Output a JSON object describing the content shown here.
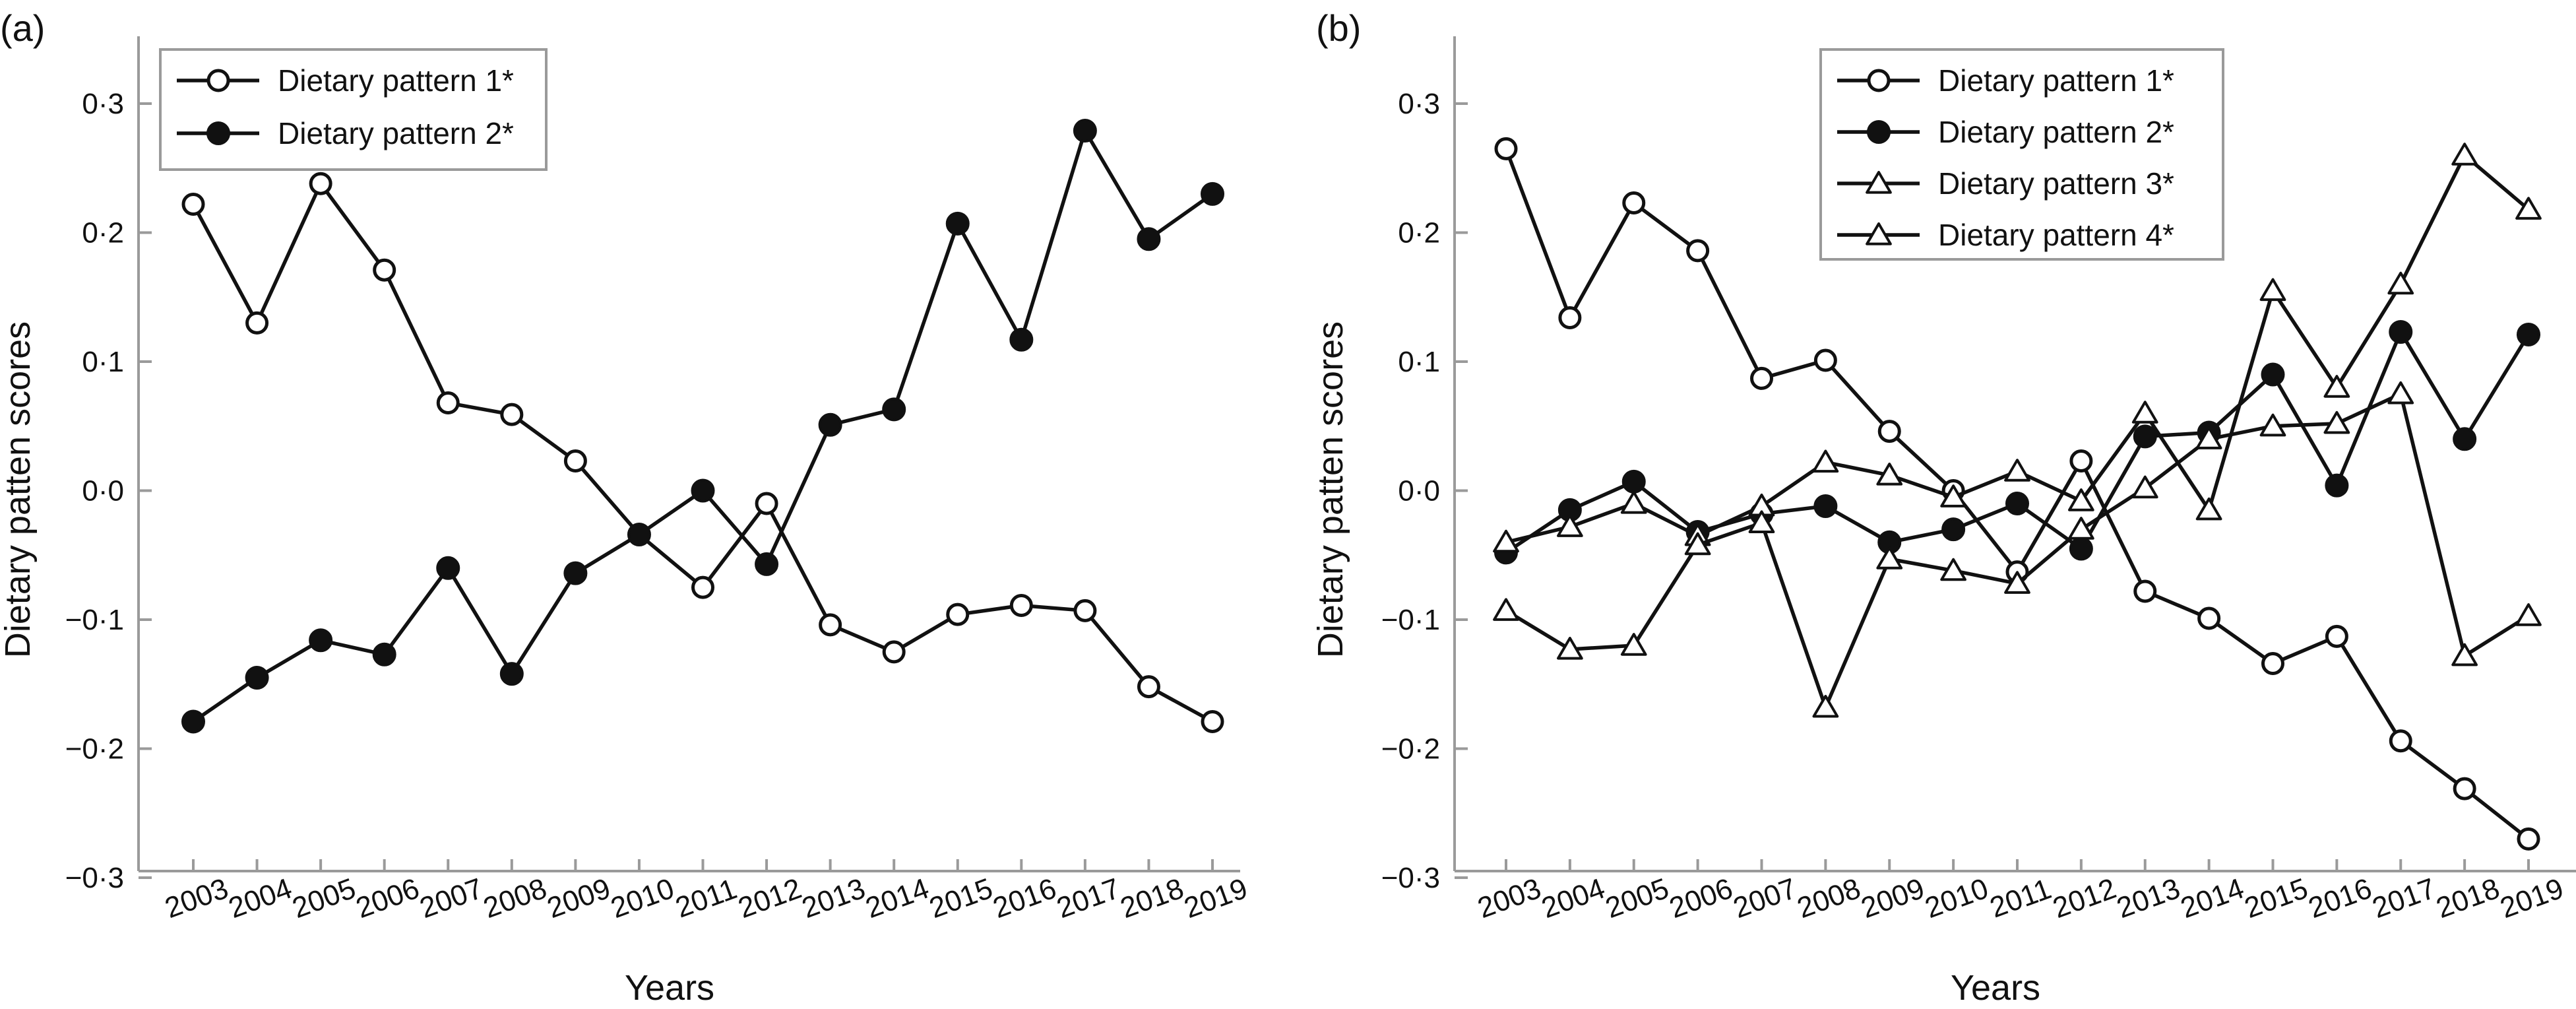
{
  "chart_data": [
    {
      "type": "line",
      "panel_label": "(a)",
      "xlabel": "Years",
      "ylabel": "Dietary patten scores",
      "ylim": [
        -0.3,
        0.3
      ],
      "yticks": [
        -0.3,
        -0.2,
        -0.1,
        0.0,
        0.1,
        0.2,
        0.3
      ],
      "ytick_labels": [
        "−0·3",
        "−0·2",
        "−0·1",
        "0·0",
        "0·1",
        "0·2",
        "0·3"
      ],
      "categories": [
        "2003",
        "2004",
        "2005",
        "2006",
        "2007",
        "2008",
        "2009",
        "2010",
        "2011",
        "2012",
        "2013",
        "2014",
        "2015",
        "2016",
        "2017",
        "2018",
        "2019"
      ],
      "legend_position": "top-left",
      "series": [
        {
          "name": "Dietary pattern 1*",
          "marker": "circle-open",
          "values": [
            0.222,
            0.13,
            0.238,
            0.171,
            0.068,
            0.059,
            0.023,
            -0.034,
            -0.075,
            -0.01,
            -0.104,
            -0.125,
            -0.096,
            -0.089,
            -0.093,
            -0.152,
            -0.179
          ]
        },
        {
          "name": "Dietary pattern 2*",
          "marker": "circle-filled",
          "values": [
            -0.179,
            -0.145,
            -0.116,
            -0.127,
            -0.06,
            -0.142,
            -0.064,
            -0.034,
            0.0,
            -0.057,
            0.051,
            0.063,
            0.207,
            0.117,
            0.279,
            0.195,
            0.23
          ]
        }
      ]
    },
    {
      "type": "line",
      "panel_label": "(b)",
      "xlabel": "Years",
      "ylabel": "Dietary patten scores",
      "ylim": [
        -0.3,
        0.3
      ],
      "yticks": [
        -0.3,
        -0.2,
        -0.1,
        0.0,
        0.1,
        0.2,
        0.3
      ],
      "ytick_labels": [
        "−0·3",
        "−0·2",
        "−0·1",
        "0·0",
        "0·1",
        "0·2",
        "0·3"
      ],
      "categories": [
        "2003",
        "2004",
        "2005",
        "2006",
        "2007",
        "2008",
        "2009",
        "2010",
        "2011",
        "2012",
        "2013",
        "2014",
        "2015",
        "2016",
        "2017",
        "2018",
        "2019"
      ],
      "legend_position": "top-center",
      "series": [
        {
          "name": "Dietary pattern 1*",
          "marker": "circle-open",
          "values": [
            0.265,
            0.134,
            0.223,
            0.186,
            0.087,
            0.101,
            0.046,
            0.0,
            -0.063,
            0.023,
            -0.078,
            -0.099,
            -0.134,
            -0.113,
            -0.194,
            -0.231,
            -0.27
          ]
        },
        {
          "name": "Dietary pattern 2*",
          "marker": "circle-filled",
          "values": [
            -0.048,
            -0.015,
            0.007,
            -0.032,
            -0.018,
            -0.012,
            -0.04,
            -0.03,
            -0.01,
            -0.045,
            0.042,
            0.045,
            0.09,
            0.004,
            0.123,
            0.04,
            0.121
          ]
        },
        {
          "name": "Dietary pattern 3*",
          "marker": "triangle-open",
          "values": [
            -0.04,
            -0.028,
            -0.01,
            -0.035,
            -0.012,
            0.022,
            0.012,
            -0.005,
            0.015,
            -0.008,
            0.06,
            -0.015,
            0.155,
            0.08,
            0.16,
            0.26,
            0.218
          ]
        },
        {
          "name": "Dietary pattern 4*",
          "marker": "triangle-open",
          "values": [
            -0.093,
            -0.123,
            -0.12,
            -0.042,
            -0.025,
            -0.168,
            -0.053,
            -0.062,
            -0.072,
            -0.03,
            0.002,
            0.04,
            0.05,
            0.052,
            0.075,
            -0.128,
            -0.097
          ]
        }
      ]
    }
  ]
}
